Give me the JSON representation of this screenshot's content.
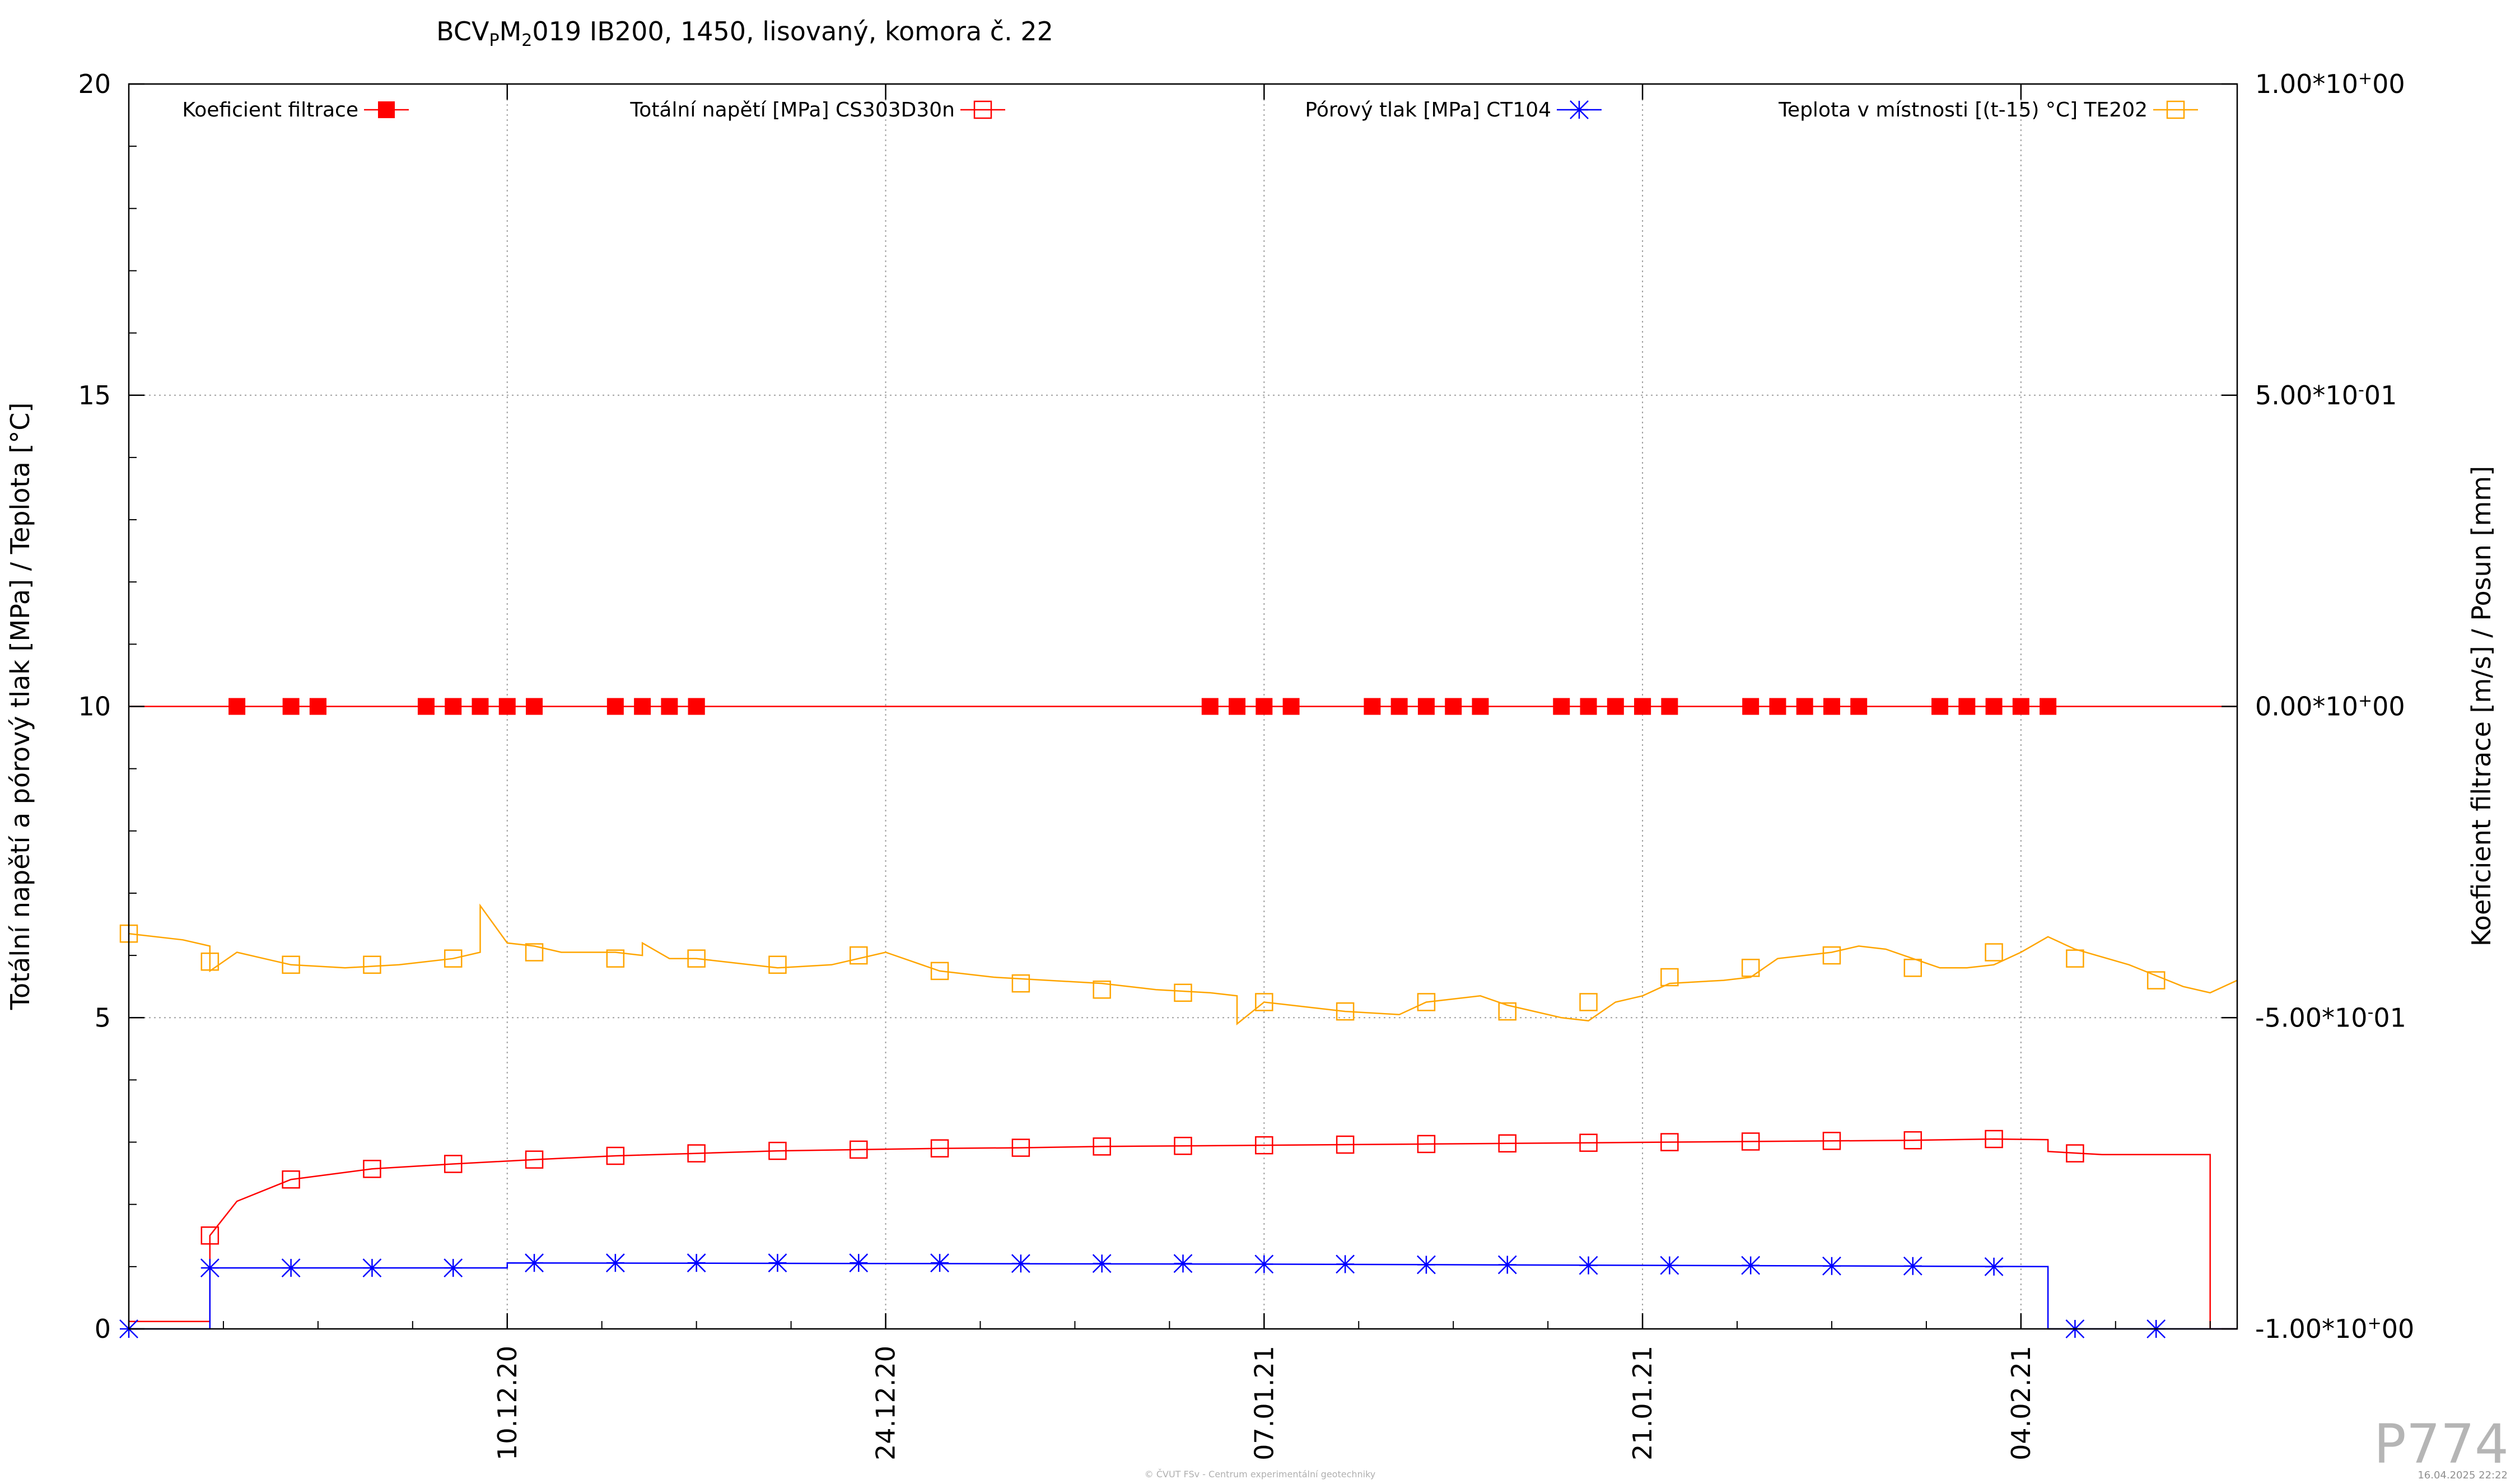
{
  "chart_data": {
    "type": "line",
    "title": "BCV",
    "title_parts": {
      "prefix": "BCV",
      "sub1": "P",
      "mid": "M",
      "sub2": "2",
      "suffix": "019 IB200, 1450, lisovaný, komora č. 22"
    },
    "ylabel": "Totální napětí a pórový tlak [MPa] / Teplota [°C]",
    "y2label": "Koeficient filtrace [m/s] / Posun [mm]",
    "ylim": [
      0,
      20
    ],
    "y2lim": [
      -1.0,
      1.0
    ],
    "xlim": [
      "2020-11-26",
      "2021-02-12"
    ],
    "grid": true,
    "legend_position": "top",
    "yticks": [
      "0",
      "5",
      "10",
      "15",
      "20"
    ],
    "y2ticks": [
      {
        "mant": "1.00*10",
        "sign": "+",
        "exp": "00"
      },
      {
        "mant": "5.00*10",
        "sign": "-",
        "exp": "01"
      },
      {
        "mant": "0.00*10",
        "sign": "+",
        "exp": "00"
      },
      {
        "mant": "-5.00*10",
        "sign": "-",
        "exp": "01"
      },
      {
        "mant": "-1.00*10",
        "sign": "+",
        "exp": "00"
      }
    ],
    "xticks": [
      {
        "date": "2020-12-10",
        "label": "10.12.20"
      },
      {
        "date": "2020-12-24",
        "label": "24.12.20"
      },
      {
        "date": "2021-01-07",
        "label": "07.01.21"
      },
      {
        "date": "2021-01-21",
        "label": "21.01.21"
      },
      {
        "date": "2021-02-04",
        "label": "04.02.21"
      }
    ],
    "series": [
      {
        "name": "Koeficient filtrace",
        "axis": "y2",
        "color": "#ff0000",
        "marker": "filled-square",
        "constant": 0.0,
        "x": [
          "2020-11-30",
          "2020-12-02",
          "2020-12-03",
          "2020-12-03",
          "2020-12-07",
          "2020-12-08",
          "2020-12-09",
          "2020-12-09",
          "2020-12-10",
          "2020-12-11",
          "2020-12-11",
          "2020-12-14",
          "2020-12-15",
          "2020-12-16",
          "2020-12-17",
          "2020-12-17",
          "2021-01-05",
          "2021-01-06",
          "2021-01-07",
          "2021-01-08",
          "2021-01-11",
          "2021-01-12",
          "2021-01-13",
          "2021-01-14",
          "2021-01-15",
          "2021-01-18",
          "2021-01-19",
          "2021-01-20",
          "2021-01-21",
          "2021-01-21",
          "2021-01-22",
          "2021-01-25",
          "2021-01-26",
          "2021-01-27",
          "2021-01-28",
          "2021-01-29",
          "2021-02-01",
          "2021-02-02",
          "2021-02-03",
          "2021-02-04",
          "2021-02-05"
        ],
        "y": [
          0,
          0,
          0,
          0,
          0,
          0,
          0,
          0,
          0,
          0,
          0,
          0,
          0,
          0,
          0,
          0,
          0,
          0,
          0,
          0,
          0,
          0,
          0,
          0,
          0,
          0,
          0,
          0,
          0,
          0,
          0,
          0,
          0,
          0,
          0,
          0,
          0,
          0,
          0,
          0,
          0
        ]
      },
      {
        "name": "Totální napětí [MPa] CS303D30n",
        "axis": "y",
        "color": "#ff0000",
        "marker": "open-square",
        "x": [
          "2020-11-26",
          "2020-11-28",
          "2020-11-29",
          "2020-11-29",
          "2020-11-30",
          "2020-12-02",
          "2020-12-05",
          "2020-12-08",
          "2020-12-11",
          "2020-12-14",
          "2020-12-17",
          "2020-12-20",
          "2020-12-23",
          "2020-12-26",
          "2020-12-29",
          "2021-01-01",
          "2021-01-04",
          "2021-01-07",
          "2021-01-10",
          "2021-01-13",
          "2021-01-16",
          "2021-01-19",
          "2021-01-22",
          "2021-01-25",
          "2021-01-28",
          "2021-01-31",
          "2021-02-03",
          "2021-02-05",
          "2021-02-05",
          "2021-02-07",
          "2021-02-11",
          "2021-02-11",
          "2021-02-12"
        ],
        "y": [
          0.12,
          0.12,
          0.12,
          1.5,
          2.05,
          2.4,
          2.57,
          2.65,
          2.72,
          2.78,
          2.82,
          2.86,
          2.88,
          2.9,
          2.91,
          2.93,
          2.94,
          2.95,
          2.96,
          2.97,
          2.98,
          2.99,
          3.0,
          3.01,
          3.02,
          3.03,
          3.05,
          3.04,
          2.85,
          2.8,
          2.8,
          0.0,
          0.0
        ],
        "markers_x": [
          "2020-11-29",
          "2020-12-02",
          "2020-12-05",
          "2020-12-08",
          "2020-12-11",
          "2020-12-14",
          "2020-12-17",
          "2020-12-20",
          "2020-12-23",
          "2020-12-26",
          "2020-12-29",
          "2021-01-01",
          "2021-01-04",
          "2021-01-07",
          "2021-01-10",
          "2021-01-13",
          "2021-01-16",
          "2021-01-19",
          "2021-01-22",
          "2021-01-25",
          "2021-01-28",
          "2021-01-31",
          "2021-02-03",
          "2021-02-06"
        ],
        "markers_y": [
          1.5,
          2.4,
          2.57,
          2.65,
          2.72,
          2.78,
          2.82,
          2.86,
          2.88,
          2.9,
          2.91,
          2.93,
          2.94,
          2.95,
          2.96,
          2.97,
          2.98,
          2.99,
          3.0,
          3.01,
          3.02,
          3.03,
          3.05,
          2.82
        ]
      },
      {
        "name": "Pórový tlak [MPa] CT104",
        "axis": "y",
        "color": "#0000ff",
        "marker": "star",
        "x": [
          "2020-11-26",
          "2020-11-29",
          "2020-11-29",
          "2020-12-10",
          "2020-12-10",
          "2021-01-07",
          "2021-02-05",
          "2021-02-05",
          "2021-02-12"
        ],
        "y": [
          0.0,
          0.0,
          0.98,
          0.98,
          1.06,
          1.04,
          1.0,
          0.0,
          0.0
        ],
        "markers_x": [
          "2020-11-26",
          "2020-11-29",
          "2020-12-02",
          "2020-12-05",
          "2020-12-08",
          "2020-12-11",
          "2020-12-14",
          "2020-12-17",
          "2020-12-20",
          "2020-12-23",
          "2020-12-26",
          "2020-12-29",
          "2021-01-01",
          "2021-01-04",
          "2021-01-07",
          "2021-01-10",
          "2021-01-13",
          "2021-01-16",
          "2021-01-19",
          "2021-01-22",
          "2021-01-25",
          "2021-01-28",
          "2021-01-31",
          "2021-02-03",
          "2021-02-06",
          "2021-02-09"
        ],
        "markers_y": [
          0.0,
          0.98,
          0.98,
          0.98,
          0.98,
          1.06,
          1.06,
          1.06,
          1.06,
          1.06,
          1.06,
          1.05,
          1.05,
          1.05,
          1.04,
          1.04,
          1.03,
          1.03,
          1.02,
          1.02,
          1.02,
          1.01,
          1.01,
          1.0,
          0.0,
          0.0
        ]
      },
      {
        "name": "Teplota v místnosti [(t-15) °C] TE202",
        "axis": "y",
        "color": "#ffa500",
        "marker": "open-square",
        "x": [
          "2020-11-26",
          "2020-11-28",
          "2020-11-29",
          "2020-11-29",
          "2020-11-30",
          "2020-12-01",
          "2020-12-02",
          "2020-12-04",
          "2020-12-06",
          "2020-12-07",
          "2020-12-08",
          "2020-12-09",
          "2020-12-09",
          "2020-12-10",
          "2020-12-11",
          "2020-12-12",
          "2020-12-13",
          "2020-12-14",
          "2020-12-15",
          "2020-12-15",
          "2020-12-16",
          "2020-12-17",
          "2020-12-18",
          "2020-12-19",
          "2020-12-20",
          "2020-12-22",
          "2020-12-23",
          "2020-12-24",
          "2020-12-25",
          "2020-12-26",
          "2020-12-28",
          "2020-12-30",
          "2021-01-01",
          "2021-01-03",
          "2021-01-05",
          "2021-01-06",
          "2021-01-06",
          "2021-01-07",
          "2021-01-08",
          "2021-01-10",
          "2021-01-12",
          "2021-01-13",
          "2021-01-14",
          "2021-01-15",
          "2021-01-16",
          "2021-01-17",
          "2021-01-18",
          "2021-01-19",
          "2021-01-20",
          "2021-01-21",
          "2021-01-22",
          "2021-01-24",
          "2021-01-25",
          "2021-01-26",
          "2021-01-27",
          "2021-01-28",
          "2021-01-29",
          "2021-01-30",
          "2021-01-31",
          "2021-02-01",
          "2021-02-02",
          "2021-02-03",
          "2021-02-04",
          "2021-02-05",
          "2021-02-06",
          "2021-02-08",
          "2021-02-10",
          "2021-02-11",
          "2021-02-12"
        ],
        "y": [
          6.35,
          6.25,
          6.15,
          5.75,
          6.05,
          5.95,
          5.85,
          5.8,
          5.85,
          5.9,
          5.95,
          6.05,
          6.8,
          6.2,
          6.15,
          6.05,
          6.05,
          6.05,
          6.0,
          6.2,
          5.95,
          5.95,
          5.9,
          5.85,
          5.8,
          5.85,
          5.95,
          6.05,
          5.9,
          5.75,
          5.65,
          5.6,
          5.55,
          5.45,
          5.4,
          5.35,
          4.9,
          5.25,
          5.2,
          5.1,
          5.05,
          5.25,
          5.3,
          5.35,
          5.2,
          5.1,
          5.0,
          4.95,
          5.25,
          5.35,
          5.55,
          5.6,
          5.65,
          5.95,
          6.0,
          6.05,
          6.15,
          6.1,
          5.95,
          5.8,
          5.8,
          5.85,
          6.05,
          6.3,
          6.1,
          5.85,
          5.5,
          5.4,
          5.6
        ],
        "markers_x": [
          "2020-11-26",
          "2020-11-29",
          "2020-12-02",
          "2020-12-05",
          "2020-12-08",
          "2020-12-11",
          "2020-12-14",
          "2020-12-17",
          "2020-12-20",
          "2020-12-23",
          "2020-12-26",
          "2020-12-29",
          "2021-01-01",
          "2021-01-04",
          "2021-01-07",
          "2021-01-10",
          "2021-01-13",
          "2021-01-16",
          "2021-01-19",
          "2021-01-22",
          "2021-01-25",
          "2021-01-28",
          "2021-01-31",
          "2021-02-03",
          "2021-02-06",
          "2021-02-09"
        ],
        "markers_y": [
          6.35,
          5.9,
          5.85,
          5.85,
          5.95,
          6.05,
          5.95,
          5.95,
          5.85,
          6.0,
          5.75,
          5.55,
          5.45,
          5.4,
          5.25,
          5.1,
          5.25,
          5.1,
          5.25,
          5.65,
          5.8,
          6.0,
          5.8,
          6.05,
          5.95,
          5.6
        ]
      }
    ]
  },
  "footer": {
    "copyright": "© ČVUT FSv - Centrum experimentální geotechniky",
    "code": "P774",
    "timestamp": "16.04.2025 22:22"
  }
}
